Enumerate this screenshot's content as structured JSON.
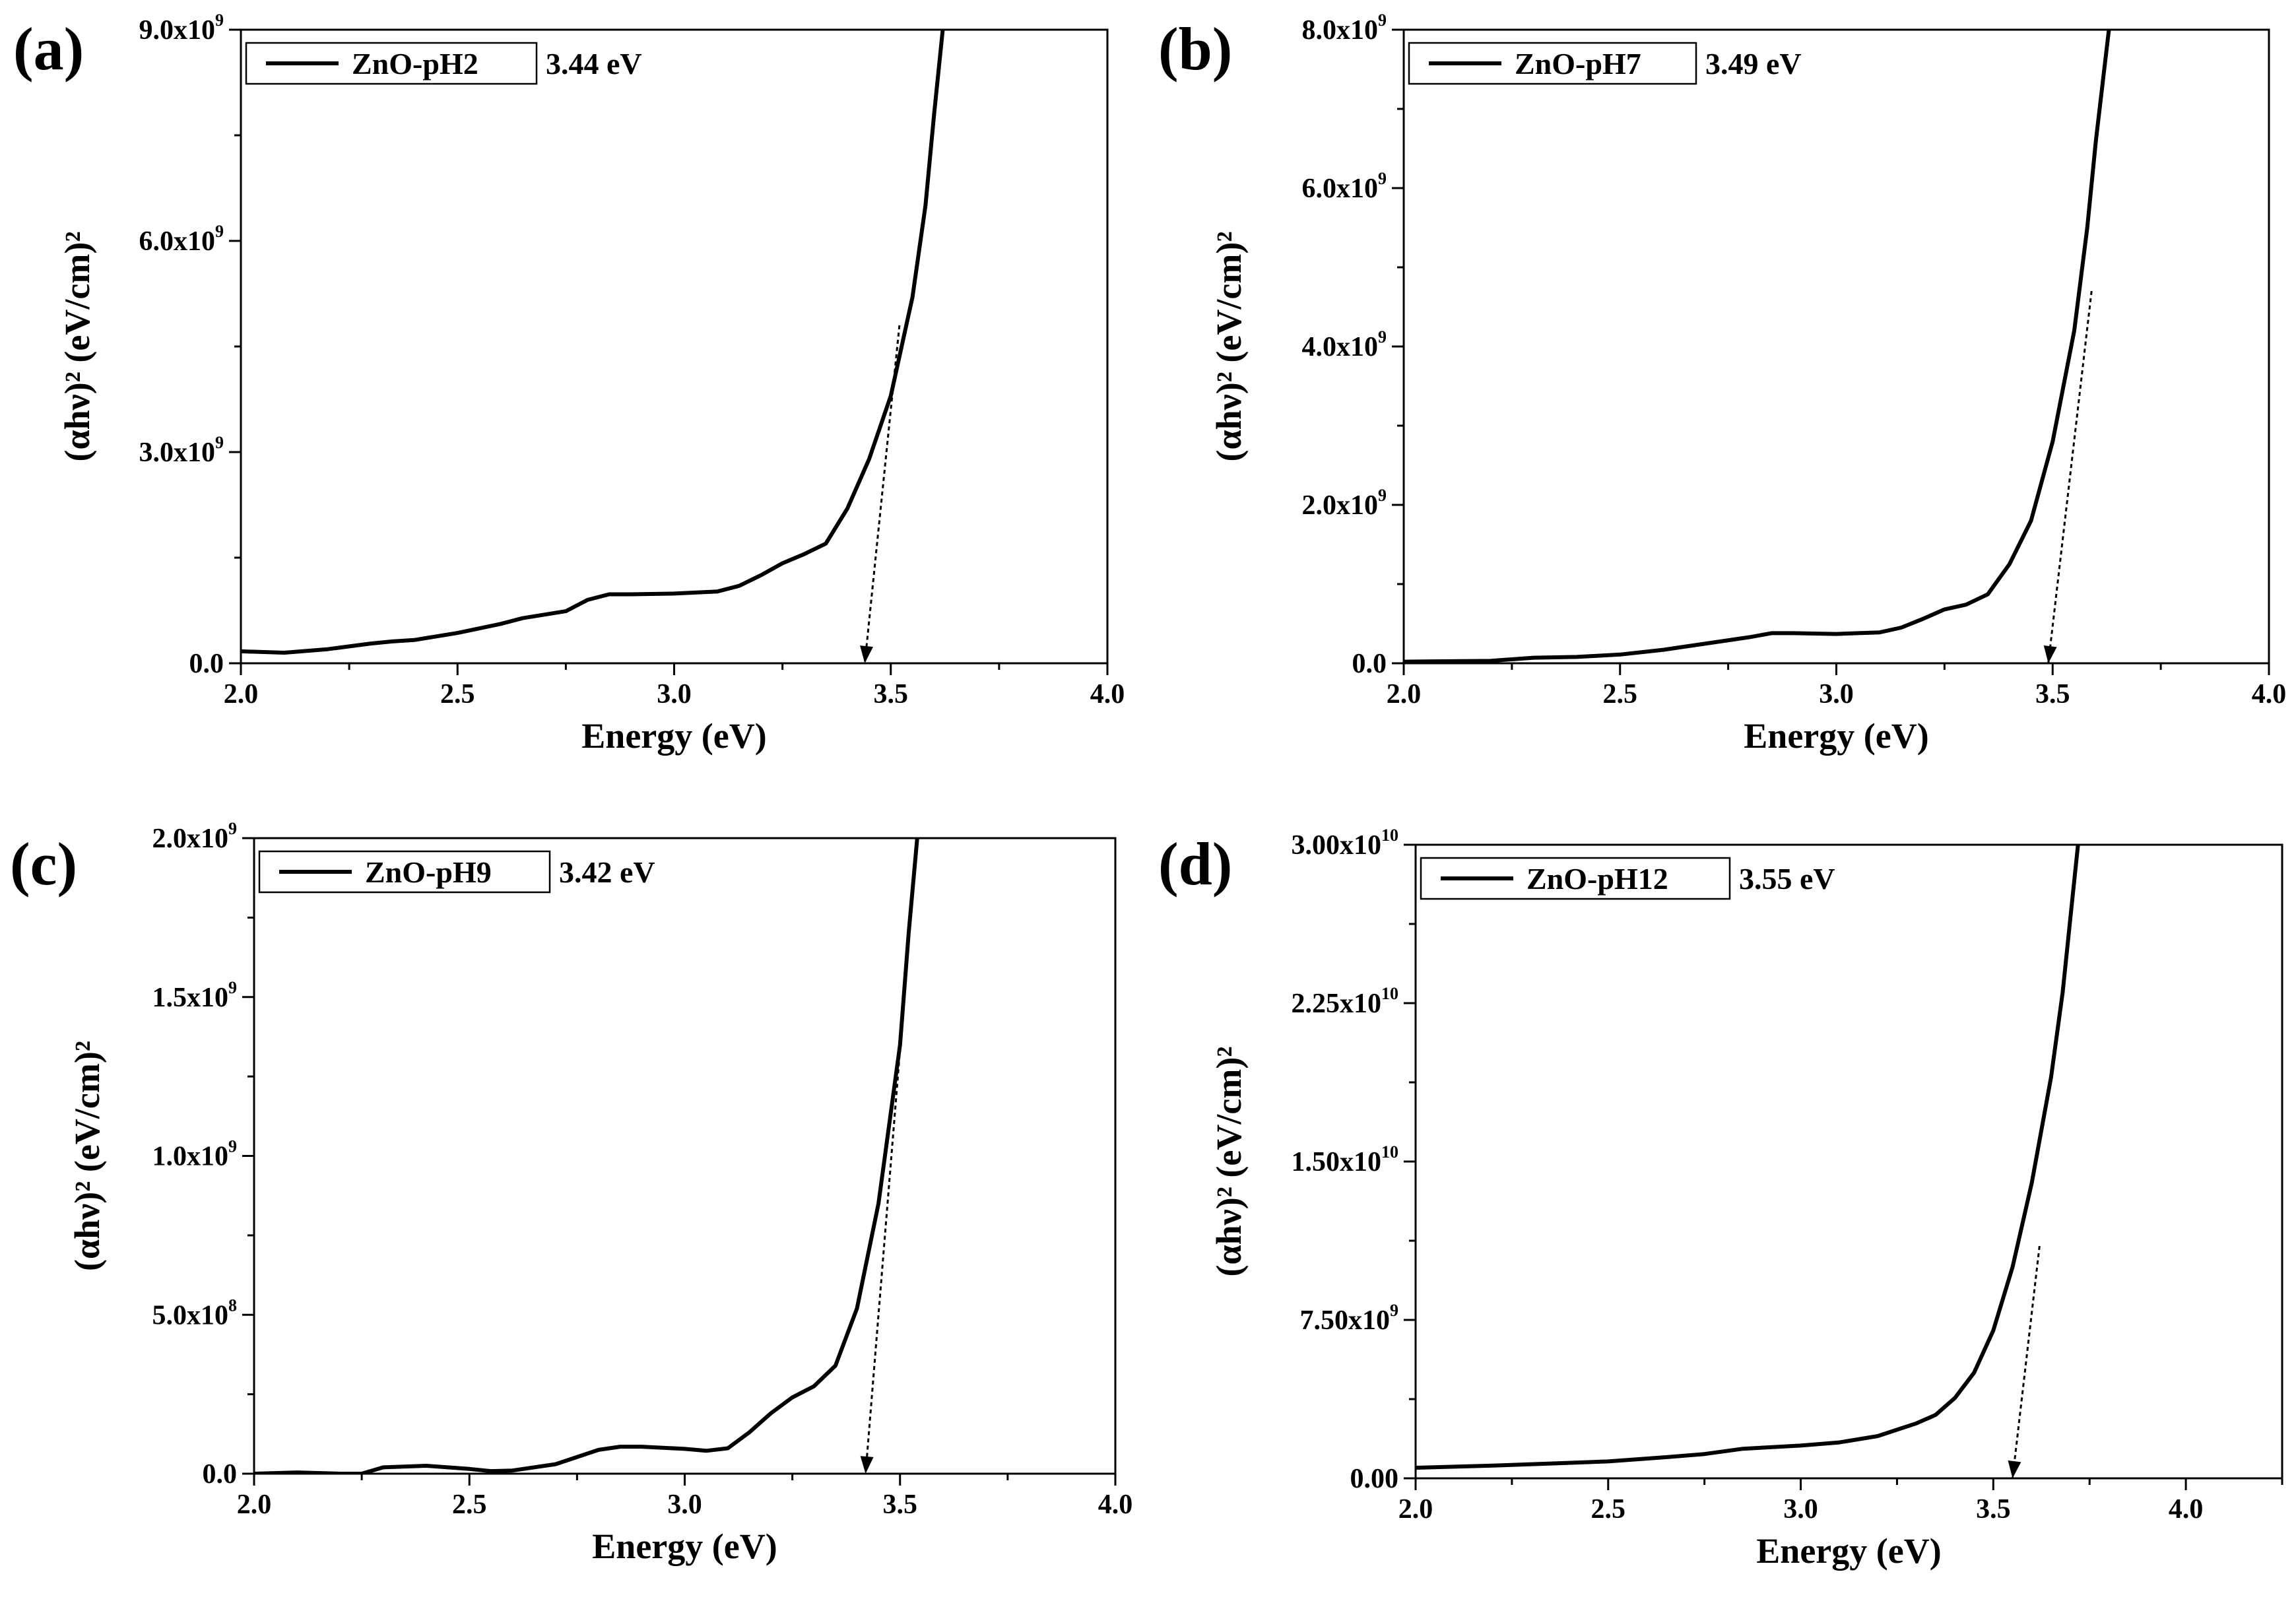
{
  "figure": {
    "panels": [
      {
        "label": "(a)",
        "legend": "ZnO-pH2",
        "bandgap_label": "3.44 eV",
        "xlabel": "Energy (eV)",
        "ylabel": "(αhν)² (eV/cm)²",
        "x_ticks": [
          "2.0",
          "2.5",
          "3.0",
          "3.5",
          "4.0"
        ],
        "y_ticks": [
          {
            "value": 0,
            "mant": "0.0",
            "exp": ""
          },
          {
            "value": 3000000000,
            "mant": "3.0x10",
            "exp": "9"
          },
          {
            "value": 6000000000,
            "mant": "6.0x10",
            "exp": "9"
          },
          {
            "value": 9000000000,
            "mant": "9.0x10",
            "exp": "9"
          }
        ]
      },
      {
        "label": "(b)",
        "legend": "ZnO-pH7",
        "bandgap_label": "3.49 eV",
        "xlabel": "Energy (eV)",
        "ylabel": "(αhν)² (eV/cm)²",
        "x_ticks": [
          "2.0",
          "2.5",
          "3.0",
          "3.5",
          "4.0"
        ],
        "y_ticks": [
          {
            "value": 0,
            "mant": "0.0",
            "exp": ""
          },
          {
            "value": 2000000000,
            "mant": "2.0x10",
            "exp": "9"
          },
          {
            "value": 4000000000,
            "mant": "4.0x10",
            "exp": "9"
          },
          {
            "value": 6000000000,
            "mant": "6.0x10",
            "exp": "9"
          },
          {
            "value": 8000000000,
            "mant": "8.0x10",
            "exp": "9"
          }
        ]
      },
      {
        "label": "(c)",
        "legend": "ZnO-pH9",
        "bandgap_label": "3.42 eV",
        "xlabel": "Energy (eV)",
        "ylabel": "(αhν)² (eV/cm)²",
        "x_ticks": [
          "2.0",
          "2.5",
          "3.0",
          "3.5",
          "4.0"
        ],
        "y_ticks": [
          {
            "value": 0,
            "mant": "0.0",
            "exp": ""
          },
          {
            "value": 500000000,
            "mant": "5.0x10",
            "exp": "8"
          },
          {
            "value": 1000000000,
            "mant": "1.0x10",
            "exp": "9"
          },
          {
            "value": 1500000000,
            "mant": "1.5x10",
            "exp": "9"
          },
          {
            "value": 2000000000,
            "mant": "2.0x10",
            "exp": "9"
          }
        ]
      },
      {
        "label": "(d)",
        "legend": "ZnO-pH12",
        "bandgap_label": "3.55 eV",
        "xlabel": "Energy (eV)",
        "ylabel": "(αhν)² (eV/cm)²",
        "x_ticks": [
          "2.0",
          "2.5",
          "3.0",
          "3.5",
          "4.0"
        ],
        "y_ticks": [
          {
            "value": 0,
            "mant": "0.00",
            "exp": ""
          },
          {
            "value": 7500000000,
            "mant": "7.50x10",
            "exp": "9"
          },
          {
            "value": 15000000000,
            "mant": "1.50x10",
            "exp": "10"
          },
          {
            "value": 22500000000,
            "mant": "2.25x10",
            "exp": "10"
          },
          {
            "value": 30000000000,
            "mant": "3.00x10",
            "exp": "10"
          }
        ]
      }
    ]
  },
  "chart_data": [
    {
      "type": "line",
      "title": "(a)",
      "xlabel": "Energy (eV)",
      "ylabel": "(αhν)² (eV/cm)²",
      "xlim": [
        2.0,
        4.0
      ],
      "ylim": [
        0,
        9000000000
      ],
      "legend_position": "top-left",
      "series": [
        {
          "name": "ZnO-pH2",
          "x": [
            2.0,
            2.1,
            2.2,
            2.3,
            2.35,
            2.4,
            2.5,
            2.6,
            2.65,
            2.75,
            2.8,
            2.85,
            2.9,
            3.0,
            3.1,
            3.15,
            3.2,
            3.25,
            3.3,
            3.35,
            3.4,
            3.45,
            3.5,
            3.55,
            3.58,
            3.6,
            3.62
          ],
          "y": [
            170000000,
            150000000,
            200000000,
            280000000,
            310000000,
            330000000,
            430000000,
            560000000,
            640000000,
            740000000,
            900000000,
            980000000,
            980000000,
            990000000,
            1020000000,
            1100000000,
            1250000000,
            1420000000,
            1550000000,
            1700000000,
            2200000000,
            2900000000,
            3800000000,
            5200000000,
            6500000000,
            7800000000,
            9000000000
          ]
        }
      ],
      "tangent": {
        "x": [
          3.44,
          3.52
        ],
        "y": [
          0,
          4800000000
        ]
      },
      "bandgap_ev": 3.44
    },
    {
      "type": "line",
      "title": "(b)",
      "xlabel": "Energy (eV)",
      "ylabel": "(αhν)² (eV/cm)²",
      "xlim": [
        2.0,
        4.0
      ],
      "ylim": [
        0,
        8000000000
      ],
      "legend_position": "top-left",
      "series": [
        {
          "name": "ZnO-pH7",
          "x": [
            2.0,
            2.2,
            2.3,
            2.4,
            2.5,
            2.6,
            2.7,
            2.8,
            2.85,
            2.9,
            3.0,
            3.1,
            3.15,
            3.2,
            3.25,
            3.3,
            3.35,
            3.4,
            3.45,
            3.5,
            3.55,
            3.58,
            3.6,
            3.63
          ],
          "y": [
            20000000,
            30000000,
            70000000,
            80000000,
            110000000,
            170000000,
            250000000,
            330000000,
            380000000,
            380000000,
            370000000,
            390000000,
            450000000,
            560000000,
            680000000,
            740000000,
            870000000,
            1250000000,
            1800000000,
            2800000000,
            4200000000,
            5500000000,
            6600000000,
            8000000000
          ]
        }
      ],
      "tangent": {
        "x": [
          3.49,
          3.59
        ],
        "y": [
          0,
          4700000000
        ]
      },
      "bandgap_ev": 3.49
    },
    {
      "type": "line",
      "title": "(c)",
      "xlabel": "Energy (eV)",
      "ylabel": "(αhν)² (eV/cm)²",
      "xlim": [
        2.0,
        4.0
      ],
      "ylim": [
        0,
        2000000000
      ],
      "legend_position": "top-left",
      "series": [
        {
          "name": "ZnO-pH9",
          "x": [
            2.0,
            2.1,
            2.2,
            2.25,
            2.3,
            2.4,
            2.5,
            2.55,
            2.6,
            2.7,
            2.8,
            2.85,
            2.9,
            3.0,
            3.05,
            3.1,
            3.15,
            3.2,
            3.25,
            3.3,
            3.35,
            3.4,
            3.45,
            3.5,
            3.52,
            3.54
          ],
          "y": [
            0,
            4000000,
            0,
            0,
            20000000,
            25000000,
            15000000,
            8000000,
            10000000,
            30000000,
            75000000,
            85000000,
            85000000,
            78000000,
            72000000,
            80000000,
            130000000,
            190000000,
            240000000,
            275000000,
            340000000,
            520000000,
            850000000,
            1350000000,
            1700000000,
            2000000000
          ]
        }
      ],
      "tangent": {
        "x": [
          3.42,
          3.51
        ],
        "y": [
          0,
          1500000000
        ]
      },
      "bandgap_ev": 3.42
    },
    {
      "type": "line",
      "title": "(d)",
      "xlabel": "Energy (eV)",
      "ylabel": "(αhν)² (eV/cm)²",
      "xlim": [
        2.0,
        4.25
      ],
      "ylim": [
        0,
        30000000000
      ],
      "legend_position": "top-left",
      "series": [
        {
          "name": "ZnO-pH12",
          "x": [
            2.0,
            2.2,
            2.35,
            2.5,
            2.65,
            2.75,
            2.85,
            3.0,
            3.1,
            3.2,
            3.25,
            3.3,
            3.35,
            3.4,
            3.45,
            3.5,
            3.55,
            3.6,
            3.65,
            3.68,
            3.7,
            3.72
          ],
          "y": [
            500000000,
            600000000,
            700000000,
            800000000,
            1000000000,
            1150000000,
            1400000000,
            1550000000,
            1700000000,
            2000000000,
            2300000000,
            2600000000,
            3000000000,
            3800000000,
            5000000000,
            7000000000,
            10000000000,
            14000000000,
            19000000000,
            23000000000,
            26500000000,
            30000000000
          ]
        }
      ],
      "tangent": {
        "x": [
          3.55,
          3.62
        ],
        "y": [
          0,
          11000000000
        ]
      },
      "bandgap_ev": 3.55
    }
  ]
}
